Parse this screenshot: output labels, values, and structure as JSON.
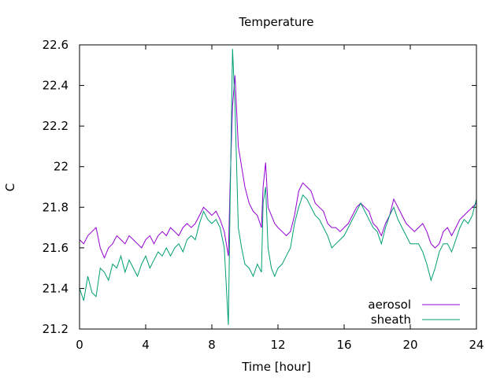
{
  "chart_data": {
    "type": "line",
    "title": "Temperature",
    "xlabel": "Time [hour]",
    "ylabel": "C",
    "xlim": [
      0,
      24
    ],
    "ylim": [
      21.2,
      22.6
    ],
    "x_ticks": [
      0,
      4,
      8,
      12,
      16,
      20,
      24
    ],
    "y_ticks": [
      21.2,
      21.4,
      21.6,
      21.8,
      22.0,
      22.2,
      22.4,
      22.6
    ],
    "x_tick_labels": [
      "0",
      "4",
      "8",
      "12",
      "16",
      "20",
      "24"
    ],
    "y_tick_labels": [
      "21.2",
      "21.4",
      "21.6",
      "21.8",
      "22",
      "22.2",
      "22.4",
      "22.6"
    ],
    "grid": false,
    "legend_position": "bottom-right",
    "series": [
      {
        "name": "aerosol",
        "color": "#9400d3",
        "x": [
          0.0,
          0.25,
          0.5,
          0.75,
          1.0,
          1.25,
          1.5,
          1.75,
          2.0,
          2.25,
          2.5,
          2.75,
          3.0,
          3.25,
          3.5,
          3.75,
          4.0,
          4.25,
          4.5,
          4.75,
          5.0,
          5.25,
          5.5,
          5.75,
          6.0,
          6.25,
          6.5,
          6.75,
          7.0,
          7.25,
          7.5,
          7.75,
          8.0,
          8.25,
          8.5,
          8.75,
          9.0,
          9.1,
          9.25,
          9.4,
          9.6,
          9.8,
          10.0,
          10.25,
          10.5,
          10.75,
          11.0,
          11.1,
          11.25,
          11.4,
          11.6,
          11.8,
          12.0,
          12.25,
          12.5,
          12.75,
          13.0,
          13.25,
          13.5,
          13.75,
          14.0,
          14.25,
          14.5,
          14.75,
          15.0,
          15.25,
          15.5,
          15.75,
          16.0,
          16.25,
          16.5,
          16.75,
          17.0,
          17.25,
          17.5,
          17.75,
          18.0,
          18.25,
          18.5,
          18.75,
          19.0,
          19.25,
          19.5,
          19.75,
          20.0,
          20.25,
          20.5,
          20.75,
          21.0,
          21.25,
          21.5,
          21.75,
          22.0,
          22.25,
          22.5,
          22.75,
          23.0,
          23.25,
          23.5,
          23.75,
          24.0
        ],
        "y": [
          21.64,
          21.62,
          21.66,
          21.68,
          21.7,
          21.6,
          21.55,
          21.6,
          21.62,
          21.66,
          21.64,
          21.62,
          21.66,
          21.64,
          21.62,
          21.6,
          21.64,
          21.66,
          21.62,
          21.66,
          21.68,
          21.66,
          21.7,
          21.68,
          21.66,
          21.7,
          21.72,
          21.7,
          21.72,
          21.76,
          21.8,
          21.78,
          21.76,
          21.78,
          21.74,
          21.68,
          21.56,
          21.9,
          22.3,
          22.45,
          22.1,
          22.0,
          21.9,
          21.82,
          21.78,
          21.76,
          21.7,
          21.9,
          22.02,
          21.8,
          21.76,
          21.72,
          21.7,
          21.68,
          21.66,
          21.68,
          21.76,
          21.88,
          21.92,
          21.9,
          21.88,
          21.82,
          21.8,
          21.78,
          21.72,
          21.7,
          21.7,
          21.68,
          21.7,
          21.72,
          21.76,
          21.8,
          21.82,
          21.8,
          21.78,
          21.72,
          21.7,
          21.66,
          21.72,
          21.76,
          21.84,
          21.8,
          21.76,
          21.72,
          21.7,
          21.68,
          21.7,
          21.72,
          21.68,
          21.62,
          21.6,
          21.62,
          21.68,
          21.7,
          21.66,
          21.7,
          21.74,
          21.76,
          21.78,
          21.8,
          21.82
        ]
      },
      {
        "name": "sheath",
        "color": "#009e73",
        "x": [
          0.0,
          0.25,
          0.5,
          0.75,
          1.0,
          1.25,
          1.5,
          1.75,
          2.0,
          2.25,
          2.5,
          2.75,
          3.0,
          3.25,
          3.5,
          3.75,
          4.0,
          4.25,
          4.5,
          4.75,
          5.0,
          5.25,
          5.5,
          5.75,
          6.0,
          6.25,
          6.5,
          6.75,
          7.0,
          7.25,
          7.5,
          7.75,
          8.0,
          8.25,
          8.5,
          8.75,
          9.0,
          9.1,
          9.25,
          9.4,
          9.6,
          9.8,
          10.0,
          10.25,
          10.5,
          10.75,
          11.0,
          11.1,
          11.25,
          11.4,
          11.6,
          11.8,
          12.0,
          12.25,
          12.5,
          12.75,
          13.0,
          13.25,
          13.5,
          13.75,
          14.0,
          14.25,
          14.5,
          14.75,
          15.0,
          15.25,
          15.5,
          15.75,
          16.0,
          16.25,
          16.5,
          16.75,
          17.0,
          17.25,
          17.5,
          17.75,
          18.0,
          18.25,
          18.5,
          18.75,
          19.0,
          19.25,
          19.5,
          19.75,
          20.0,
          20.25,
          20.5,
          20.75,
          21.0,
          21.25,
          21.5,
          21.75,
          22.0,
          22.25,
          22.5,
          22.75,
          23.0,
          23.25,
          23.5,
          23.75,
          24.0
        ],
        "y": [
          21.4,
          21.34,
          21.46,
          21.38,
          21.36,
          21.5,
          21.48,
          21.44,
          21.52,
          21.5,
          21.56,
          21.48,
          21.54,
          21.5,
          21.46,
          21.52,
          21.56,
          21.5,
          21.54,
          21.58,
          21.56,
          21.6,
          21.56,
          21.6,
          21.62,
          21.58,
          21.64,
          21.66,
          21.64,
          21.72,
          21.78,
          21.74,
          21.72,
          21.74,
          21.7,
          21.6,
          21.22,
          21.8,
          22.58,
          22.3,
          21.7,
          21.6,
          21.52,
          21.5,
          21.46,
          21.52,
          21.48,
          21.82,
          21.9,
          21.6,
          21.5,
          21.46,
          21.5,
          21.52,
          21.56,
          21.6,
          21.72,
          21.8,
          21.86,
          21.84,
          21.8,
          21.76,
          21.74,
          21.7,
          21.66,
          21.6,
          21.62,
          21.64,
          21.66,
          21.7,
          21.74,
          21.78,
          21.82,
          21.78,
          21.74,
          21.7,
          21.68,
          21.62,
          21.7,
          21.76,
          21.8,
          21.74,
          21.7,
          21.66,
          21.62,
          21.62,
          21.62,
          21.58,
          21.52,
          21.44,
          21.5,
          21.58,
          21.62,
          21.62,
          21.58,
          21.64,
          21.7,
          21.74,
          21.72,
          21.76,
          21.84
        ]
      }
    ]
  }
}
